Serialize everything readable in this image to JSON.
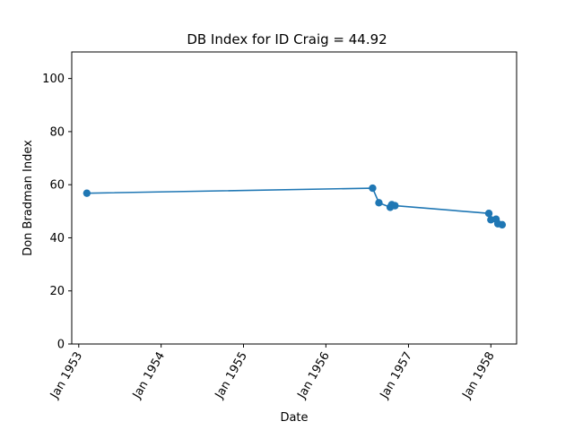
{
  "chart_data": {
    "type": "line",
    "title": "DB Index for ID Craig = 44.92",
    "xlabel": "Date",
    "ylabel": "Don Bradman Index",
    "ylim": [
      0,
      110
    ],
    "xlim": [
      "1952-12-01",
      "1958-04-25"
    ],
    "yticks": [
      0,
      20,
      40,
      60,
      80,
      100
    ],
    "xticks": [
      {
        "date": "1953-01-01",
        "label": "Jan 1953"
      },
      {
        "date": "1954-01-01",
        "label": "Jan 1954"
      },
      {
        "date": "1955-01-01",
        "label": "Jan 1955"
      },
      {
        "date": "1956-01-01",
        "label": "Jan 1956"
      },
      {
        "date": "1957-01-01",
        "label": "Jan 1957"
      },
      {
        "date": "1958-01-01",
        "label": "Jan 1958"
      }
    ],
    "grid": false,
    "series": [
      {
        "color": "#1f77b4",
        "marker": "circle",
        "x": [
          "1953-02-06",
          "1956-07-26",
          "1956-08-23",
          "1956-10-12",
          "1956-10-19",
          "1956-11-02",
          "1957-12-23",
          "1958-01-01",
          "1958-01-24",
          "1958-02-01",
          "1958-02-20"
        ],
        "y": [
          56.8,
          58.7,
          53.2,
          51.5,
          52.5,
          52.1,
          49.2,
          46.8,
          47.0,
          45.3,
          44.92
        ]
      }
    ]
  }
}
